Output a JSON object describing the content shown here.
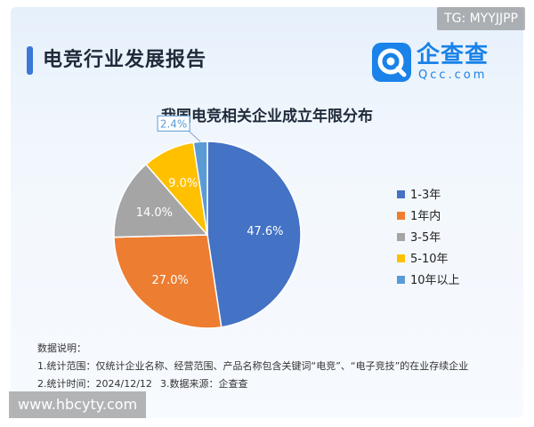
{
  "watermarks": {
    "top_right": "TG: MYYJJPP",
    "bottom_left": "www.hbcyty.com"
  },
  "report": {
    "title": "电竞行业发展报告"
  },
  "logo": {
    "name": "企查查",
    "domain": "Qcc.com",
    "icon": "qcc-logo-icon",
    "color": "#1a82e8"
  },
  "chart_data": {
    "type": "pie",
    "title": "我国电竞相关企业成立年限分布",
    "slices": [
      {
        "label": "1-3年",
        "value": 47.6,
        "display": "47.6%",
        "color": "#4472c4"
      },
      {
        "label": "1年内",
        "value": 27.0,
        "display": "27.0%",
        "color": "#ed7d31"
      },
      {
        "label": "3-5年",
        "value": 14.0,
        "display": "14.0%",
        "color": "#a5a5a5"
      },
      {
        "label": "5-10年",
        "value": 9.0,
        "display": "9.0%",
        "color": "#ffc000"
      },
      {
        "label": "10年以上",
        "value": 2.4,
        "display": "2.4%",
        "color": "#5b9bd5"
      }
    ],
    "legend_position": "right"
  },
  "notes": {
    "heading": "数据说明：",
    "scope": "1.统计范围：仅统计企业名称、经营范围、产品名称包含关键词“电竞”、“电子竞技”的在业存续企业",
    "time": "2.统计时间：2024/12/12",
    "source": "3.数据来源：企查查"
  }
}
